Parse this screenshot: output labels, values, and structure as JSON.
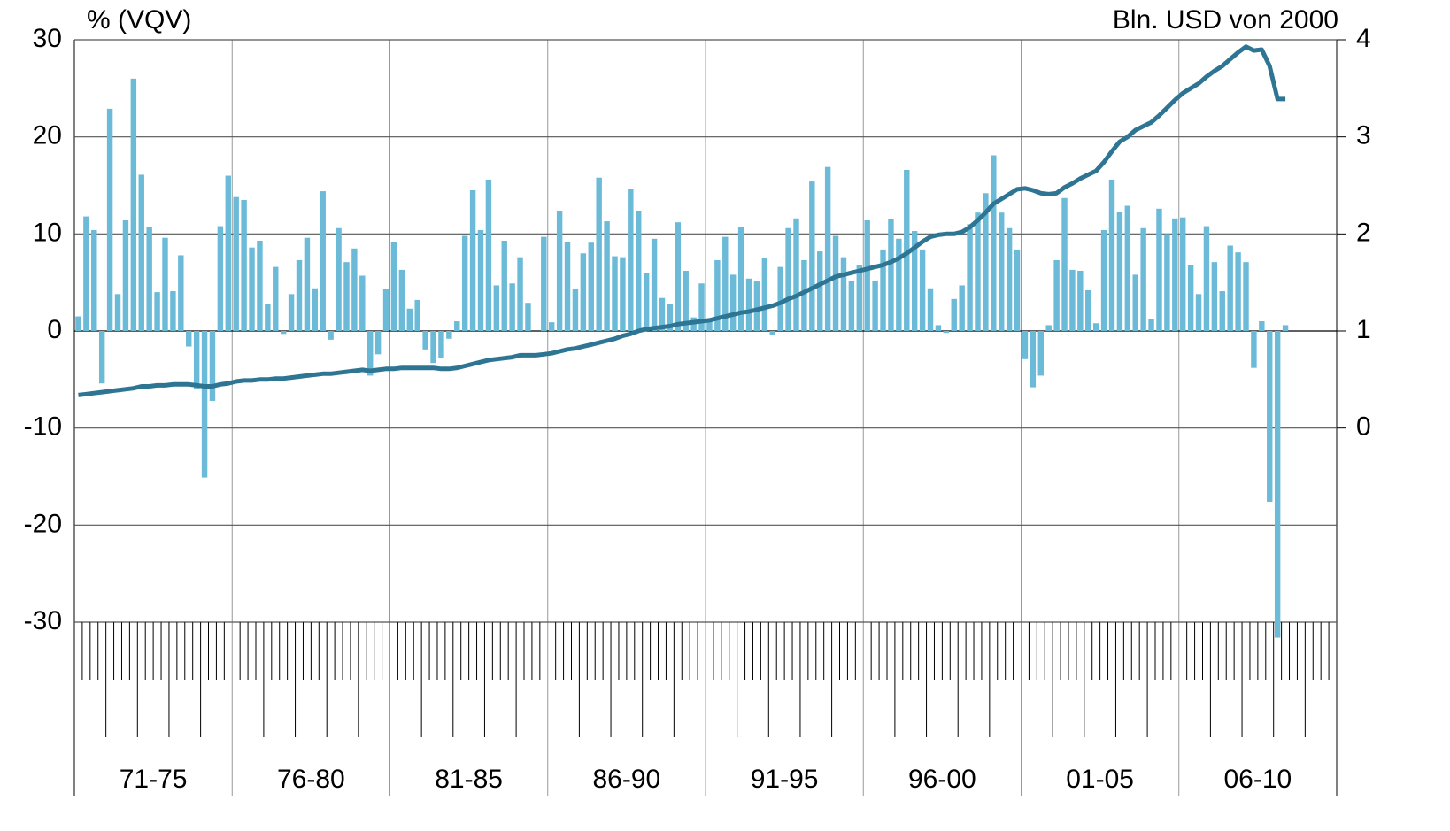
{
  "chart_data": {
    "type": "bar",
    "y_label": "% (VQV)",
    "y2_label": "Bln. USD von 2000",
    "groups": [
      "71-75",
      "76-80",
      "81-85",
      "86-90",
      "91-95",
      "96-00",
      "01-05",
      "06-10"
    ],
    "categories": [
      null,
      null,
      null,
      null,
      null,
      null,
      null,
      null,
      null,
      null,
      null,
      null,
      null,
      null,
      null,
      null,
      null,
      null,
      null,
      null,
      null,
      null,
      null,
      null,
      null,
      null,
      null,
      null,
      null,
      null,
      null,
      null,
      null,
      null,
      null,
      null,
      null,
      null,
      null,
      null,
      null,
      null,
      null,
      null,
      null,
      null,
      null,
      null,
      null,
      null,
      null,
      null,
      null,
      null,
      null,
      null,
      null,
      null,
      null,
      null,
      null,
      null,
      null,
      null,
      null,
      null,
      null,
      null,
      null,
      null,
      null,
      null,
      null,
      null,
      null,
      null,
      null,
      null,
      null,
      null,
      null,
      null,
      null,
      null,
      null,
      null,
      null,
      null,
      null,
      null,
      null,
      null,
      null,
      null,
      null,
      null,
      null,
      null,
      null,
      null,
      null,
      null,
      null,
      null,
      null,
      null,
      null,
      null,
      null,
      null,
      null,
      null,
      null,
      null,
      null,
      null,
      null,
      null,
      null,
      null,
      null,
      null,
      null,
      null,
      null,
      null,
      null,
      null,
      null,
      null,
      null,
      null,
      null,
      null,
      null,
      null,
      null,
      null,
      null,
      null,
      null,
      null,
      null,
      null,
      null,
      null,
      null,
      null,
      null,
      null,
      null,
      null,
      null,
      null,
      null,
      null,
      null,
      null,
      null,
      null
    ],
    "series": [
      {
        "color": "#6bbad8",
        "type": "bar",
        "values": [
          1.5,
          11.8,
          10.4,
          -5.4,
          22.9,
          3.8,
          11.4,
          26.0,
          16.1,
          10.7,
          4.0,
          9.6,
          4.1,
          7.8,
          -1.6,
          -6.0,
          -15.1,
          -7.2,
          10.8,
          16.0,
          13.8,
          13.5,
          8.6,
          9.3,
          2.8,
          6.6,
          -0.3,
          3.8,
          7.3,
          9.6,
          4.4,
          14.4,
          -0.9,
          10.6,
          7.1,
          8.5,
          5.7,
          -4.6,
          -2.4,
          4.3,
          9.2,
          6.3,
          2.3,
          3.2,
          -1.9,
          -3.3,
          -2.8,
          -0.8,
          1.0,
          9.8,
          14.5,
          10.4,
          15.6,
          4.7,
          9.3,
          4.9,
          7.6,
          2.9,
          0,
          9.7,
          0.9,
          12.4,
          9.2,
          4.3,
          8.0,
          9.1,
          15.8,
          11.3,
          7.7,
          7.6,
          14.6,
          12.4,
          6.0,
          9.5,
          3.4,
          2.8,
          11.2,
          6.2,
          1.4,
          4.9,
          1.0,
          7.3,
          9.7,
          5.8,
          10.7,
          5.4,
          5.1,
          7.5,
          -0.4,
          6.6,
          10.6,
          11.6,
          7.3,
          15.4,
          8.2,
          16.9,
          9.8,
          7.6,
          5.2,
          6.8,
          11.4,
          5.2,
          8.4,
          11.5,
          9.5,
          16.6,
          10.3,
          8.4,
          4.4,
          0.6,
          -0.2,
          3.3,
          4.7,
          11.0,
          12.2,
          14.2,
          18.1,
          12.2,
          10.6,
          8.4,
          -2.9,
          -5.8,
          -4.6,
          0.6,
          7.3,
          13.7,
          6.3,
          6.2,
          4.2,
          0.8,
          10.4,
          15.6,
          12.3,
          12.9,
          5.8,
          10.6,
          1.2,
          12.6,
          10.0,
          11.6,
          11.7,
          6.8,
          3.8,
          10.8,
          7.1,
          4.1,
          8.8,
          8.1,
          7.1,
          -3.8,
          1.0,
          -17.6,
          -31.6,
          0.6,
          null,
          null,
          null,
          null,
          null,
          null
        ]
      },
      {
        "color": "#2e7593",
        "type": "line",
        "axis": "y2",
        "values": [
          0.34,
          0.35,
          0.36,
          0.37,
          0.38,
          0.39,
          0.4,
          0.41,
          0.43,
          0.43,
          0.44,
          0.44,
          0.45,
          0.45,
          0.45,
          0.44,
          0.43,
          0.43,
          0.45,
          0.46,
          0.48,
          0.49,
          0.49,
          0.5,
          0.5,
          0.51,
          0.51,
          0.52,
          0.53,
          0.54,
          0.55,
          0.56,
          0.56,
          0.57,
          0.58,
          0.59,
          0.6,
          0.59,
          0.6,
          0.61,
          0.61,
          0.62,
          0.62,
          0.62,
          0.62,
          0.62,
          0.61,
          0.61,
          0.62,
          0.64,
          0.66,
          0.68,
          0.7,
          0.71,
          0.72,
          0.73,
          0.75,
          0.75,
          0.75,
          0.76,
          0.77,
          0.79,
          0.81,
          0.82,
          0.84,
          0.86,
          0.88,
          0.9,
          0.92,
          0.95,
          0.97,
          1.0,
          1.02,
          1.03,
          1.04,
          1.05,
          1.07,
          1.08,
          1.09,
          1.1,
          1.11,
          1.13,
          1.15,
          1.17,
          1.19,
          1.2,
          1.22,
          1.24,
          1.26,
          1.29,
          1.33,
          1.36,
          1.4,
          1.44,
          1.48,
          1.52,
          1.56,
          1.58,
          1.6,
          1.62,
          1.64,
          1.66,
          1.68,
          1.71,
          1.75,
          1.8,
          1.86,
          1.92,
          1.97,
          1.99,
          2.0,
          2.0,
          2.02,
          2.07,
          2.14,
          2.22,
          2.31,
          2.36,
          2.41,
          2.46,
          2.47,
          2.45,
          2.42,
          2.41,
          2.42,
          2.48,
          2.52,
          2.57,
          2.61,
          2.65,
          2.74,
          2.85,
          2.95,
          3.0,
          3.07,
          3.11,
          3.15,
          3.22,
          3.3,
          3.38,
          3.45,
          3.5,
          3.55,
          3.62,
          3.68,
          3.73,
          3.8,
          3.87,
          3.93,
          3.89,
          3.9,
          3.73,
          3.39,
          3.39,
          null,
          null,
          null,
          null,
          null,
          null
        ]
      }
    ],
    "ylim": [
      -30,
      30
    ],
    "yticks": [
      -30,
      -20,
      -10,
      0,
      10,
      20,
      30
    ],
    "y2lim": [
      -2,
      4
    ],
    "y2ticks": [
      0,
      1,
      2,
      3,
      4
    ],
    "grid": true
  }
}
